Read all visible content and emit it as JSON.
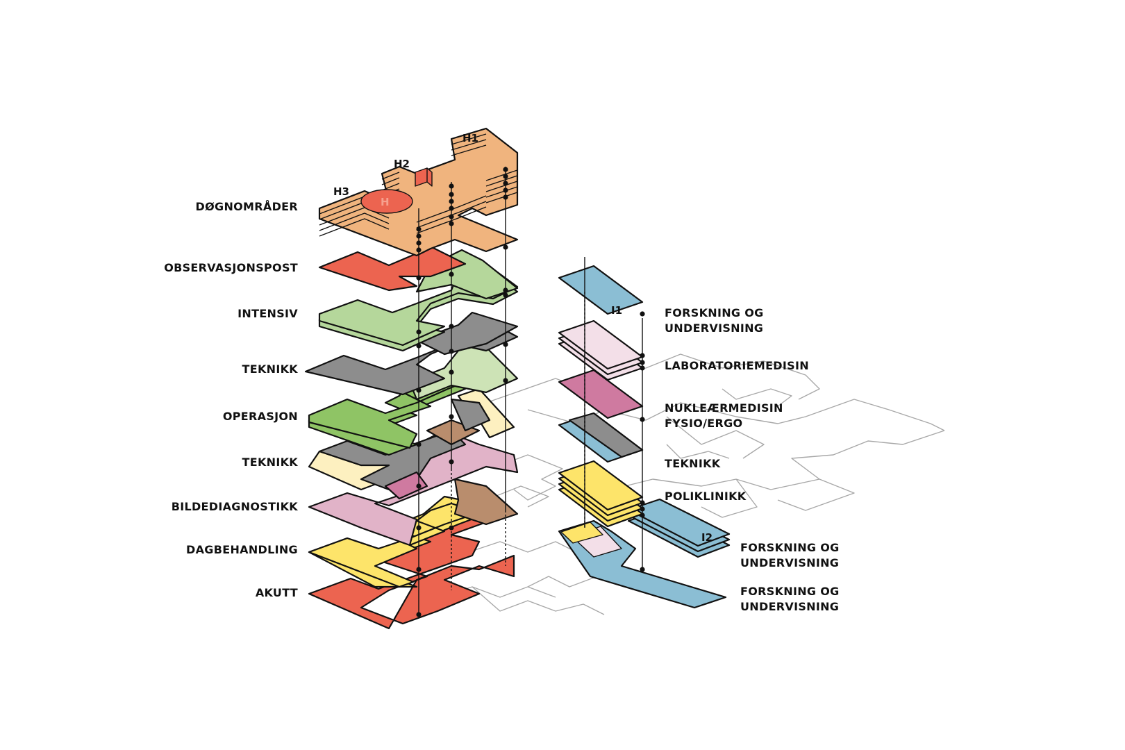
{
  "left_labels": [
    "DØGNOMRÅDER",
    "OBSERVASJONSPOST",
    "INTENSIV",
    "TEKNIKK",
    "OPERASJON",
    "TEKNIKK",
    "BILDEDIAGNOSTIKK",
    "DAGBEHANDLING",
    "AKUTT"
  ],
  "right_labels": {
    "i1_line1": "FORSKNING OG",
    "i1_line2": "UNDERVISNING",
    "lab": "LABORATORIEMEDISIN",
    "nuk_line1": "NUKLEÆRMEDISIN",
    "nuk_line2": "FYSIO/ERGO",
    "teknikk": "TEKNIKK",
    "poliklinikk": "POLIKLINIKK",
    "i2_line1": "FORSKNING OG",
    "i2_line2": "UNDERVISNING",
    "bottom_line1": "FORSKNING OG",
    "bottom_line2": "UNDERVISNING"
  },
  "tower_tags": {
    "h1": "H1",
    "h2": "H2",
    "h3": "H3",
    "i1": "I1",
    "i2": "I2",
    "helipad": "H"
  },
  "colors": {
    "dognomrader": "#f0b47e",
    "observasjon": "#ec6450",
    "intensiv": "#b5d79b",
    "teknikk": "#8d8d8d",
    "operasjon": "#8fc465",
    "teknikk_light": "#fdf0c0",
    "bildediagnostikk": "#e1b3c8",
    "dagbehandling": "#fde46a",
    "akutt": "#ec6450",
    "brown": "#b98d6d",
    "forskning": "#8bbed4",
    "laboratorie": "#f3dfe8",
    "nuklear": "#cf7aa0",
    "poliklinikk": "#fde46a"
  }
}
